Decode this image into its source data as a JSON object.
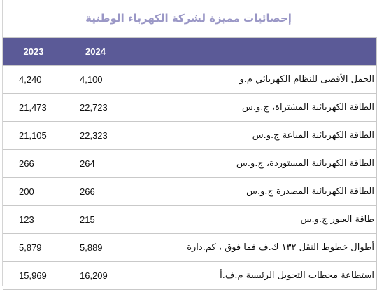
{
  "title": "إحصائيات مميزة لشركة الكهرباء الوطنية",
  "table": {
    "headers": {
      "y2023": "2023",
      "y2024": "2024",
      "label": ""
    },
    "rows": [
      {
        "label": "الحمل الأقصى للنظام الكهربائي م.و",
        "v2024": "4,100",
        "v2023": "4,240"
      },
      {
        "label": "الطاقة الكهربائية المشتراة، ج.و.س",
        "v2024": "22,723",
        "v2023": "21,473"
      },
      {
        "label": "الطاقة الكهربائية المباعة ج.و.س",
        "v2024": "22,323",
        "v2023": "21,105"
      },
      {
        "label": "الطاقة الكهربائية المستوردة، ج.و.س",
        "v2024": "264",
        "v2023": "266"
      },
      {
        "label": "الطاقة  الكهربائية المصدرة ج.و.س",
        "v2024": "266",
        "v2023": "200"
      },
      {
        "label": "طاقة العبور ج.و.س",
        "v2024": "215",
        "v2023": "123"
      },
      {
        "label": "أطوال خطوط النقل ١٣٢ ك.ف فما فوق ، كم.دارة",
        "v2024": "5,889",
        "v2023": "5,879"
      },
      {
        "label": "استطاعة محطات التحويل الرئيسة م.ف.أ",
        "v2024": "16,209",
        "v2023": "15,969"
      }
    ]
  }
}
